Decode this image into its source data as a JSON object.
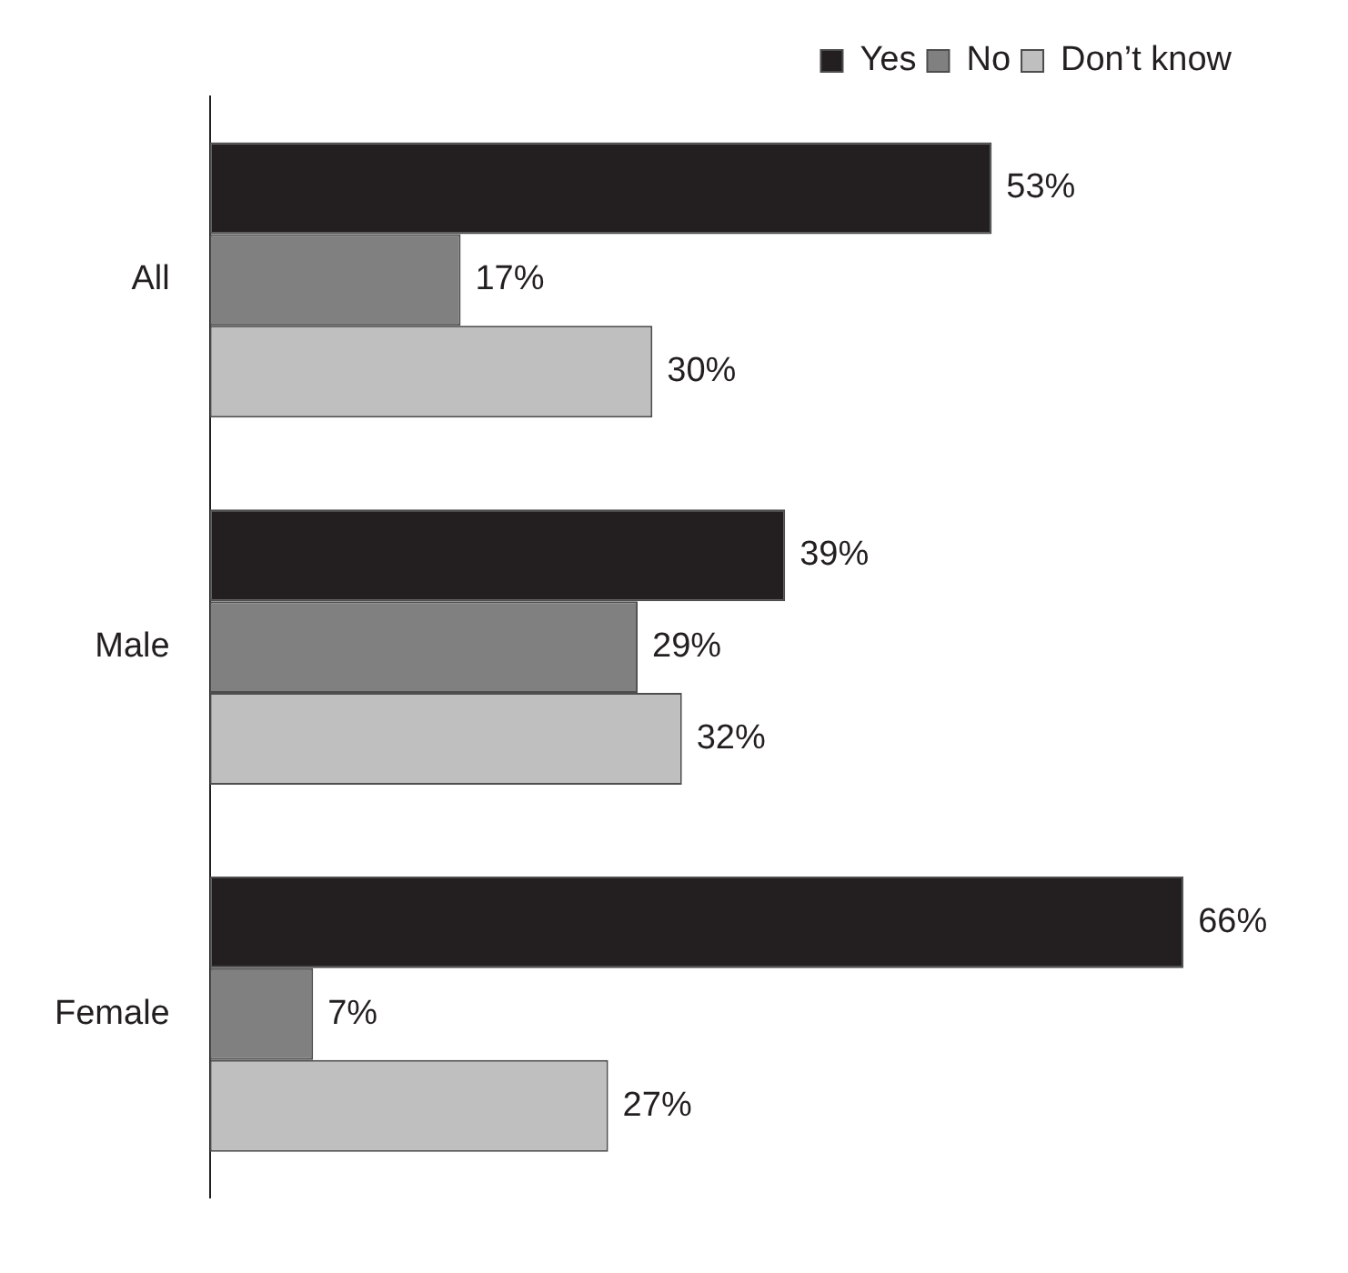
{
  "chart_data": {
    "type": "bar",
    "orientation": "horizontal",
    "categories": [
      "All",
      "Male",
      "Female"
    ],
    "series": [
      {
        "name": "Yes",
        "color": "#231f20",
        "values": [
          53,
          39,
          66
        ],
        "value_labels": [
          "53%",
          "39%",
          "66%"
        ]
      },
      {
        "name": "No",
        "color": "#808080",
        "values": [
          17,
          29,
          7
        ],
        "value_labels": [
          "17%",
          "29%",
          "7%"
        ]
      },
      {
        "name": "Don’t know",
        "color": "#bfbfbf",
        "values": [
          30,
          32,
          27
        ],
        "value_labels": [
          "30%",
          "32%",
          "27%"
        ]
      }
    ],
    "legend": "top right",
    "grid": false
  }
}
